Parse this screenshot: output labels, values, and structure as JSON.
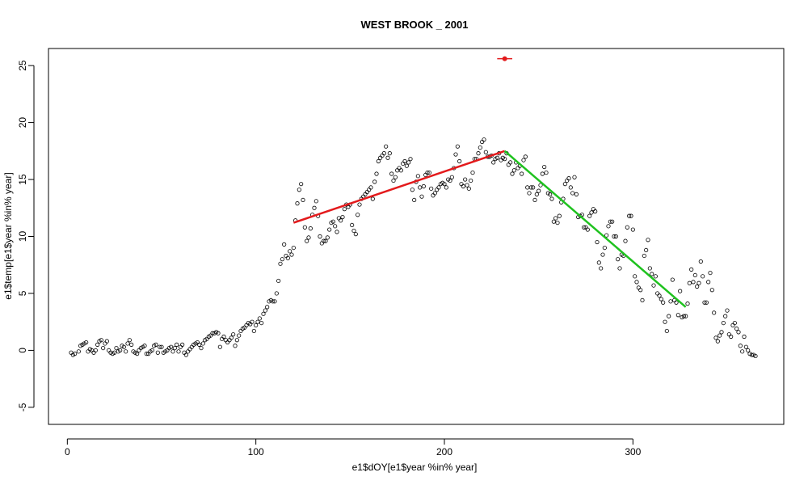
{
  "chart_data": {
    "type": "scatter",
    "title": "WEST BROOK _ 2001",
    "xlabel": "e1$dOY[e1$year %in% year]",
    "ylabel": "e1$temp[e1$year %in% year]",
    "xlim": [
      -10,
      380
    ],
    "ylim": [
      -6.5,
      26.5
    ],
    "xticks": [
      0,
      100,
      200,
      300
    ],
    "yticks": [
      -5,
      0,
      5,
      10,
      15,
      20,
      25
    ],
    "grid": false,
    "legend": "none",
    "point_color": "#000000",
    "points": [
      [
        2,
        -0.2
      ],
      [
        3,
        -0.4
      ],
      [
        4,
        -0.3
      ],
      [
        6,
        -0.1
      ],
      [
        7,
        0.4
      ],
      [
        8,
        0.5
      ],
      [
        9,
        0.6
      ],
      [
        10,
        0.7
      ],
      [
        11,
        -0.1
      ],
      [
        12,
        0.1
      ],
      [
        13,
        0.0
      ],
      [
        14,
        -0.2
      ],
      [
        15,
        0.0
      ],
      [
        16,
        0.5
      ],
      [
        17,
        0.8
      ],
      [
        18,
        0.9
      ],
      [
        19,
        0.2
      ],
      [
        20,
        0.6
      ],
      [
        21,
        0.8
      ],
      [
        22,
        0.0
      ],
      [
        23,
        -0.2
      ],
      [
        24,
        -0.3
      ],
      [
        25,
        -0.2
      ],
      [
        26,
        0.2
      ],
      [
        27,
        -0.1
      ],
      [
        28,
        0.0
      ],
      [
        29,
        0.4
      ],
      [
        30,
        0.3
      ],
      [
        31,
        -0.1
      ],
      [
        32,
        0.6
      ],
      [
        33,
        0.9
      ],
      [
        34,
        0.5
      ],
      [
        35,
        -0.1
      ],
      [
        36,
        -0.2
      ],
      [
        37,
        -0.3
      ],
      [
        38,
        0.0
      ],
      [
        39,
        0.2
      ],
      [
        40,
        0.3
      ],
      [
        41,
        0.4
      ],
      [
        42,
        -0.3
      ],
      [
        43,
        -0.3
      ],
      [
        44,
        -0.1
      ],
      [
        45,
        0.0
      ],
      [
        46,
        0.4
      ],
      [
        47,
        0.5
      ],
      [
        48,
        -0.2
      ],
      [
        49,
        0.3
      ],
      [
        50,
        0.3
      ],
      [
        51,
        -0.2
      ],
      [
        52,
        -0.1
      ],
      [
        53,
        0.0
      ],
      [
        54,
        0.2
      ],
      [
        55,
        0.3
      ],
      [
        56,
        -0.1
      ],
      [
        57,
        0.2
      ],
      [
        58,
        0.5
      ],
      [
        59,
        -0.1
      ],
      [
        60,
        0.3
      ],
      [
        61,
        0.5
      ],
      [
        62,
        -0.2
      ],
      [
        63,
        -0.4
      ],
      [
        64,
        -0.1
      ],
      [
        65,
        0.1
      ],
      [
        66,
        0.3
      ],
      [
        67,
        0.5
      ],
      [
        68,
        0.6
      ],
      [
        69,
        0.7
      ],
      [
        70,
        0.5
      ],
      [
        71,
        0.2
      ],
      [
        72,
        0.6
      ],
      [
        73,
        0.9
      ],
      [
        74,
        1.0
      ],
      [
        75,
        1.2
      ],
      [
        76,
        1.3
      ],
      [
        77,
        1.5
      ],
      [
        78,
        1.5
      ],
      [
        79,
        1.6
      ],
      [
        80,
        1.5
      ],
      [
        81,
        0.3
      ],
      [
        82,
        1.0
      ],
      [
        83,
        1.2
      ],
      [
        84,
        0.9
      ],
      [
        85,
        0.7
      ],
      [
        86,
        0.9
      ],
      [
        87,
        1.1
      ],
      [
        88,
        1.4
      ],
      [
        89,
        0.4
      ],
      [
        90,
        0.9
      ],
      [
        91,
        1.3
      ],
      [
        92,
        1.7
      ],
      [
        93,
        1.9
      ],
      [
        94,
        2.0
      ],
      [
        95,
        2.2
      ],
      [
        96,
        2.4
      ],
      [
        97,
        2.3
      ],
      [
        98,
        2.5
      ],
      [
        99,
        1.7
      ],
      [
        100,
        2.2
      ],
      [
        101,
        2.5
      ],
      [
        102,
        2.8
      ],
      [
        103,
        2.4
      ],
      [
        104,
        3.2
      ],
      [
        105,
        3.5
      ],
      [
        106,
        3.8
      ],
      [
        107,
        4.3
      ],
      [
        108,
        4.4
      ],
      [
        109,
        4.3
      ],
      [
        110,
        4.3
      ],
      [
        111,
        5.0
      ],
      [
        112,
        6.1
      ],
      [
        113,
        7.6
      ],
      [
        114,
        8.0
      ],
      [
        115,
        9.3
      ],
      [
        116,
        8.3
      ],
      [
        117,
        8.1
      ],
      [
        118,
        8.7
      ],
      [
        119,
        8.4
      ],
      [
        120,
        9.0
      ],
      [
        121,
        11.4
      ],
      [
        122,
        12.9
      ],
      [
        123,
        14.1
      ],
      [
        124,
        14.6
      ],
      [
        125,
        13.2
      ],
      [
        126,
        10.8
      ],
      [
        127,
        9.6
      ],
      [
        128,
        9.9
      ],
      [
        129,
        10.7
      ],
      [
        130,
        11.9
      ],
      [
        131,
        12.5
      ],
      [
        132,
        13.1
      ],
      [
        133,
        11.8
      ],
      [
        134,
        10.0
      ],
      [
        135,
        9.4
      ],
      [
        136,
        9.6
      ],
      [
        137,
        9.6
      ],
      [
        138,
        9.9
      ],
      [
        139,
        10.6
      ],
      [
        140,
        11.2
      ],
      [
        141,
        11.3
      ],
      [
        142,
        10.9
      ],
      [
        143,
        10.4
      ],
      [
        144,
        11.6
      ],
      [
        145,
        11.4
      ],
      [
        146,
        11.7
      ],
      [
        147,
        12.4
      ],
      [
        148,
        12.8
      ],
      [
        149,
        12.6
      ],
      [
        150,
        12.8
      ],
      [
        151,
        11.0
      ],
      [
        152,
        10.5
      ],
      [
        153,
        10.2
      ],
      [
        154,
        11.9
      ],
      [
        155,
        12.8
      ],
      [
        156,
        13.3
      ],
      [
        157,
        13.5
      ],
      [
        158,
        13.7
      ],
      [
        159,
        13.9
      ],
      [
        160,
        14.1
      ],
      [
        161,
        14.3
      ],
      [
        162,
        13.3
      ],
      [
        163,
        14.8
      ],
      [
        164,
        15.5
      ],
      [
        165,
        16.6
      ],
      [
        166,
        16.9
      ],
      [
        167,
        17.1
      ],
      [
        168,
        17.3
      ],
      [
        169,
        17.9
      ],
      [
        170,
        16.9
      ],
      [
        171,
        17.3
      ],
      [
        172,
        15.5
      ],
      [
        173,
        14.9
      ],
      [
        174,
        15.2
      ],
      [
        175,
        15.8
      ],
      [
        176,
        16.0
      ],
      [
        177,
        15.8
      ],
      [
        178,
        16.4
      ],
      [
        179,
        16.6
      ],
      [
        180,
        16.2
      ],
      [
        181,
        16.5
      ],
      [
        182,
        16.8
      ],
      [
        183,
        14.1
      ],
      [
        184,
        13.2
      ],
      [
        185,
        14.8
      ],
      [
        186,
        15.3
      ],
      [
        187,
        14.3
      ],
      [
        188,
        13.5
      ],
      [
        189,
        14.4
      ],
      [
        190,
        15.4
      ],
      [
        191,
        15.6
      ],
      [
        192,
        15.6
      ],
      [
        193,
        14.2
      ],
      [
        194,
        13.6
      ],
      [
        195,
        13.8
      ],
      [
        196,
        14.1
      ],
      [
        197,
        14.3
      ],
      [
        198,
        14.6
      ],
      [
        199,
        14.7
      ],
      [
        200,
        14.6
      ],
      [
        201,
        14.3
      ],
      [
        202,
        15.0
      ],
      [
        203,
        14.9
      ],
      [
        204,
        15.2
      ],
      [
        205,
        16.0
      ],
      [
        206,
        17.2
      ],
      [
        207,
        17.9
      ],
      [
        208,
        16.6
      ],
      [
        209,
        14.6
      ],
      [
        210,
        14.4
      ],
      [
        211,
        15.0
      ],
      [
        212,
        14.5
      ],
      [
        213,
        14.2
      ],
      [
        214,
        14.9
      ],
      [
        215,
        15.6
      ],
      [
        216,
        16.8
      ],
      [
        217,
        16.8
      ],
      [
        218,
        17.3
      ],
      [
        219,
        17.8
      ],
      [
        220,
        18.3
      ],
      [
        221,
        18.5
      ],
      [
        222,
        17.4
      ],
      [
        223,
        17.0
      ],
      [
        224,
        17.0
      ],
      [
        225,
        17.1
      ],
      [
        226,
        16.5
      ],
      [
        227,
        16.8
      ],
      [
        228,
        16.9
      ],
      [
        229,
        17.3
      ],
      [
        230,
        16.7
      ],
      [
        231,
        16.9
      ],
      [
        232,
        16.8
      ],
      [
        233,
        17.3
      ],
      [
        234,
        16.3
      ],
      [
        235,
        16.5
      ],
      [
        236,
        15.5
      ],
      [
        237,
        15.8
      ],
      [
        238,
        16.5
      ],
      [
        239,
        16.0
      ],
      [
        240,
        16.2
      ],
      [
        241,
        15.5
      ],
      [
        242,
        16.7
      ],
      [
        243,
        17.0
      ],
      [
        244,
        14.3
      ],
      [
        245,
        13.8
      ],
      [
        246,
        14.3
      ],
      [
        247,
        14.3
      ],
      [
        248,
        13.2
      ],
      [
        249,
        13.7
      ],
      [
        250,
        14.0
      ],
      [
        251,
        14.5
      ],
      [
        252,
        15.5
      ],
      [
        253,
        16.1
      ],
      [
        254,
        15.6
      ],
      [
        255,
        13.8
      ],
      [
        256,
        13.7
      ],
      [
        257,
        13.3
      ],
      [
        258,
        11.3
      ],
      [
        259,
        11.6
      ],
      [
        260,
        11.2
      ],
      [
        261,
        11.8
      ],
      [
        262,
        13.0
      ],
      [
        263,
        13.3
      ],
      [
        264,
        14.6
      ],
      [
        265,
        14.9
      ],
      [
        266,
        15.1
      ],
      [
        267,
        14.3
      ],
      [
        268,
        13.8
      ],
      [
        269,
        15.2
      ],
      [
        270,
        13.7
      ],
      [
        271,
        11.7
      ],
      [
        272,
        11.8
      ],
      [
        273,
        11.9
      ],
      [
        274,
        10.8
      ],
      [
        275,
        10.8
      ],
      [
        276,
        10.6
      ],
      [
        277,
        11.8
      ],
      [
        278,
        12.1
      ],
      [
        279,
        12.4
      ],
      [
        280,
        12.2
      ],
      [
        281,
        9.5
      ],
      [
        282,
        7.7
      ],
      [
        283,
        7.2
      ],
      [
        284,
        8.4
      ],
      [
        285,
        9.0
      ],
      [
        286,
        10.1
      ],
      [
        287,
        10.9
      ],
      [
        288,
        11.3
      ],
      [
        289,
        11.3
      ],
      [
        290,
        10.0
      ],
      [
        291,
        10.0
      ],
      [
        292,
        8.0
      ],
      [
        293,
        7.2
      ],
      [
        294,
        8.4
      ],
      [
        295,
        8.3
      ],
      [
        296,
        9.6
      ],
      [
        297,
        10.8
      ],
      [
        298,
        11.8
      ],
      [
        299,
        11.8
      ],
      [
        300,
        10.6
      ],
      [
        301,
        6.5
      ],
      [
        302,
        6.0
      ],
      [
        303,
        5.5
      ],
      [
        304,
        5.3
      ],
      [
        305,
        4.4
      ],
      [
        306,
        8.3
      ],
      [
        307,
        8.8
      ],
      [
        308,
        9.7
      ],
      [
        309,
        7.2
      ],
      [
        310,
        6.7
      ],
      [
        311,
        5.7
      ],
      [
        312,
        6.5
      ],
      [
        313,
        5.0
      ],
      [
        314,
        4.8
      ],
      [
        315,
        4.5
      ],
      [
        316,
        4.2
      ],
      [
        317,
        2.5
      ],
      [
        318,
        1.7
      ],
      [
        319,
        3.0
      ],
      [
        320,
        4.3
      ],
      [
        321,
        6.2
      ],
      [
        322,
        4.4
      ],
      [
        323,
        4.2
      ],
      [
        324,
        3.1
      ],
      [
        325,
        5.2
      ],
      [
        326,
        2.9
      ],
      [
        327,
        3.0
      ],
      [
        328,
        3.0
      ],
      [
        329,
        4.1
      ],
      [
        330,
        5.9
      ],
      [
        331,
        7.1
      ],
      [
        332,
        6.0
      ],
      [
        333,
        6.6
      ],
      [
        334,
        5.6
      ],
      [
        335,
        5.9
      ],
      [
        336,
        7.8
      ],
      [
        337,
        6.5
      ],
      [
        338,
        4.2
      ],
      [
        339,
        4.2
      ],
      [
        340,
        6.0
      ],
      [
        341,
        6.8
      ],
      [
        342,
        5.3
      ],
      [
        343,
        3.3
      ],
      [
        344,
        1.1
      ],
      [
        345,
        0.8
      ],
      [
        346,
        1.3
      ],
      [
        347,
        1.6
      ],
      [
        348,
        2.4
      ],
      [
        349,
        3.0
      ],
      [
        350,
        3.5
      ],
      [
        351,
        1.4
      ],
      [
        352,
        1.2
      ],
      [
        353,
        2.2
      ],
      [
        354,
        2.4
      ],
      [
        355,
        1.9
      ],
      [
        356,
        1.6
      ],
      [
        357,
        0.4
      ],
      [
        358,
        -0.1
      ],
      [
        359,
        1.2
      ],
      [
        360,
        0.3
      ],
      [
        361,
        0.0
      ],
      [
        362,
        -0.3
      ],
      [
        363,
        -0.4
      ],
      [
        364,
        -0.4
      ],
      [
        365,
        -0.5
      ]
    ],
    "fit_lines": [
      {
        "color": "#e31a1c",
        "x": [
          120,
          232
        ],
        "y": [
          11.2,
          17.5
        ]
      },
      {
        "color": "#1fc21f",
        "x": [
          232,
          328
        ],
        "y": [
          17.5,
          3.8
        ]
      }
    ],
    "breakpoint": {
      "color": "#e31a1c",
      "x": 232,
      "y": 25.6,
      "x_range": [
        228,
        236
      ]
    }
  }
}
